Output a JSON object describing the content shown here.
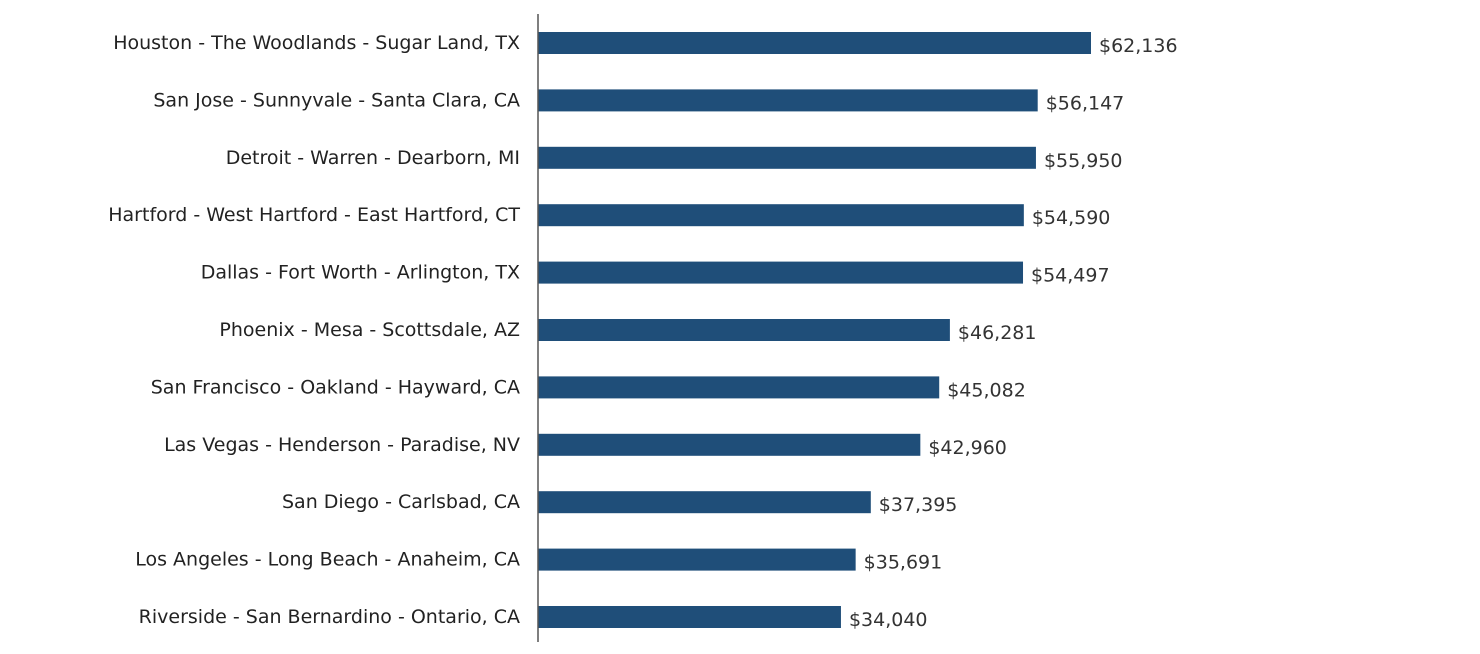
{
  "chart_data": {
    "type": "bar",
    "orientation": "horizontal",
    "categories": [
      "Houston - The Woodlands - Sugar Land, TX",
      "San Jose - Sunnyvale - Santa Clara, CA",
      "Detroit - Warren - Dearborn, MI",
      "Hartford - West Hartford - East Hartford, CT",
      "Dallas - Fort Worth - Arlington, TX",
      "Phoenix - Mesa - Scottsdale, AZ",
      "San Francisco - Oakland - Hayward, CA",
      "Las Vegas - Henderson - Paradise, NV",
      "San Diego - Carlsbad, CA",
      "Los Angeles - Long Beach - Anaheim, CA",
      "Riverside - San Bernardino - Ontario, CA"
    ],
    "values": [
      62136,
      56147,
      55950,
      54590,
      54497,
      46281,
      45082,
      42960,
      37395,
      35691,
      34040
    ],
    "value_labels": [
      "$62,136",
      "$56,147",
      "$55,950",
      "$54,590",
      "$54,497",
      "$46,281",
      "$45,082",
      "$42,960",
      "$37,395",
      "$35,691",
      "$34,040"
    ],
    "title": "",
    "xlabel": "",
    "ylabel": "",
    "xlim": [
      0,
      62136
    ],
    "grid": false,
    "legend": "none",
    "bar_color": "#1f4e79",
    "axis_color": "#555555"
  }
}
